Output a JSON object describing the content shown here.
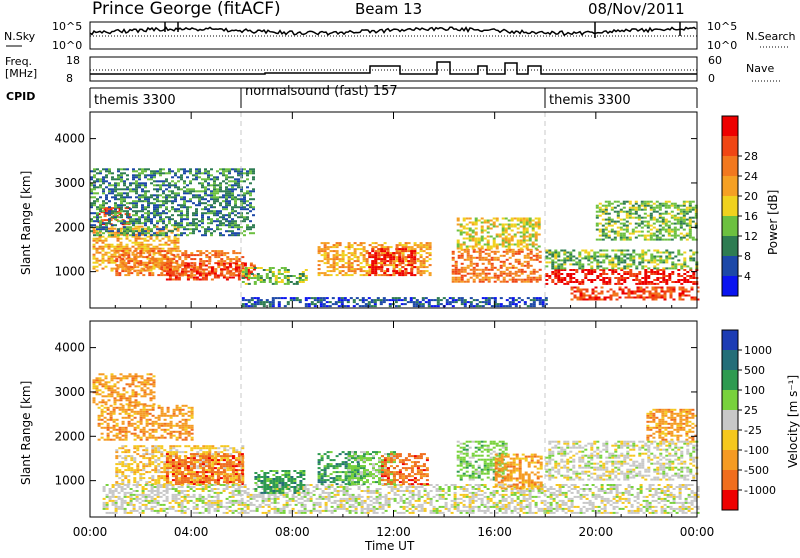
{
  "header": {
    "station": "Prince George (fitACF)",
    "beam": "Beam 13",
    "date": "08/Nov/2011"
  },
  "strips": {
    "nsky": {
      "label": "N.Sky",
      "ticks": [
        "10^5",
        "10^0"
      ]
    },
    "nsearch": {
      "label": "N.Search",
      "ticks": [
        "10^5",
        "10^0"
      ]
    },
    "freq": {
      "label_top": "Freq.",
      "label_unit": "[MHz]",
      "ticks": [
        "18",
        "8"
      ]
    },
    "nave": {
      "label": "Nave",
      "ticks": [
        "60",
        "0"
      ]
    },
    "cpid": {
      "label": "CPID",
      "segments": [
        {
          "name": "themis 3300",
          "start_hr": 0,
          "end_hr": 6
        },
        {
          "name": "normalsound (fast) 157",
          "start_hr": 6,
          "end_hr": 18
        },
        {
          "name": "themis 3300",
          "start_hr": 18,
          "end_hr": 24
        }
      ]
    }
  },
  "chart_data": [
    {
      "type": "heatmap",
      "panel": "power",
      "ylabel": "Slant Range [km]",
      "ylim": [
        180,
        4600
      ],
      "yticks": [
        "1000",
        "2000",
        "3000",
        "4000"
      ],
      "colorbar": {
        "label": "Power [dB]",
        "ticks": [
          "4",
          "8",
          "12",
          "16",
          "20",
          "24",
          "28"
        ],
        "colors": [
          "#0a14f0",
          "#1c48a8",
          "#2e7c52",
          "#6cc040",
          "#f0d21e",
          "#f5a023",
          "#f2781e",
          "#f04614",
          "#ee0000"
        ]
      },
      "regions": [
        {
          "t0": 0.3,
          "t1": 1.6,
          "r0": 2050,
          "r1": 2450,
          "level": 7
        },
        {
          "t0": 0.1,
          "t1": 3.5,
          "r0": 1000,
          "r1": 2000,
          "level": 5
        },
        {
          "t0": 1.0,
          "t1": 6.0,
          "r0": 900,
          "r1": 1450,
          "level": 6
        },
        {
          "t0": 3.0,
          "t1": 6.5,
          "r0": 800,
          "r1": 1200,
          "level": 7
        },
        {
          "t0": 6.0,
          "t1": 8.5,
          "r0": 700,
          "r1": 1100,
          "level": 3
        },
        {
          "t0": 9.0,
          "t1": 13.5,
          "r0": 900,
          "r1": 1650,
          "level": 5
        },
        {
          "t0": 11.0,
          "t1": 12.8,
          "r0": 900,
          "r1": 1500,
          "level": 8
        },
        {
          "t0": 14.3,
          "t1": 17.8,
          "r0": 750,
          "r1": 1500,
          "level": 6
        },
        {
          "t0": 14.5,
          "t1": 17.8,
          "r0": 1500,
          "r1": 2200,
          "level": 4
        },
        {
          "t0": 18.0,
          "t1": 24.0,
          "r0": 700,
          "r1": 1050,
          "level": 8
        },
        {
          "t0": 19.0,
          "t1": 24.0,
          "r0": 350,
          "r1": 650,
          "level": 7
        },
        {
          "t0": 18.0,
          "t1": 24.0,
          "r0": 1050,
          "r1": 1500,
          "level": 3
        },
        {
          "t0": 0.0,
          "t1": 6.5,
          "r0": 1800,
          "r1": 3300,
          "level": 2
        },
        {
          "t0": 6.0,
          "t1": 18.0,
          "r0": 200,
          "r1": 400,
          "level": 1
        },
        {
          "t0": 20.0,
          "t1": 24.0,
          "r0": 1700,
          "r1": 2600,
          "level": 3
        }
      ]
    },
    {
      "type": "heatmap",
      "panel": "velocity",
      "ylabel": "Slant Range [km]",
      "ylim": [
        180,
        4600
      ],
      "yticks": [
        "1000",
        "2000",
        "3000",
        "4000"
      ],
      "xlabel": "Time UT",
      "xticks": [
        "00:00",
        "04:00",
        "08:00",
        "12:00",
        "16:00",
        "20:00",
        "00:00"
      ],
      "colorbar": {
        "label": "Velocity  [m s⁻¹]",
        "ticks": [
          "1000",
          "500",
          "100",
          "25",
          "-25",
          "-100",
          "-500",
          "-1000"
        ],
        "colors": [
          "#1c3cb4",
          "#246e78",
          "#2e9a50",
          "#78d23c",
          "#c8c8c8",
          "#f5c81e",
          "#f59b23",
          "#f06e1e",
          "#ee0000"
        ]
      },
      "regions": [
        {
          "t0": 0.1,
          "t1": 2.5,
          "r0": 2700,
          "r1": 3400,
          "level": 6
        },
        {
          "t0": 0.3,
          "t1": 4.0,
          "r0": 1900,
          "r1": 2700,
          "level": 6
        },
        {
          "t0": 1.0,
          "t1": 6.0,
          "r0": 900,
          "r1": 1800,
          "level": 5
        },
        {
          "t0": 3.0,
          "t1": 6.0,
          "r0": 900,
          "r1": 1600,
          "level": 7
        },
        {
          "t0": 0.5,
          "t1": 24.0,
          "r0": 250,
          "r1": 900,
          "level": 4
        },
        {
          "t0": 6.5,
          "t1": 8.5,
          "r0": 700,
          "r1": 1200,
          "level": 2
        },
        {
          "t0": 9.0,
          "t1": 10.8,
          "r0": 900,
          "r1": 1650,
          "level": 2
        },
        {
          "t0": 10.2,
          "t1": 12.0,
          "r0": 900,
          "r1": 1650,
          "level": 3
        },
        {
          "t0": 11.5,
          "t1": 13.3,
          "r0": 900,
          "r1": 1600,
          "level": 7
        },
        {
          "t0": 14.5,
          "t1": 16.5,
          "r0": 1000,
          "r1": 1900,
          "level": 3
        },
        {
          "t0": 16.0,
          "t1": 17.8,
          "r0": 800,
          "r1": 1600,
          "level": 6
        },
        {
          "t0": 18.0,
          "t1": 24.0,
          "r0": 1000,
          "r1": 1900,
          "level": 4
        },
        {
          "t0": 22.0,
          "t1": 24.0,
          "r0": 1900,
          "r1": 2600,
          "level": 6
        }
      ]
    }
  ],
  "colors": {
    "axis": "#000000",
    "dashed_marker": "#c8c8c8",
    "background": "#ffffff"
  }
}
